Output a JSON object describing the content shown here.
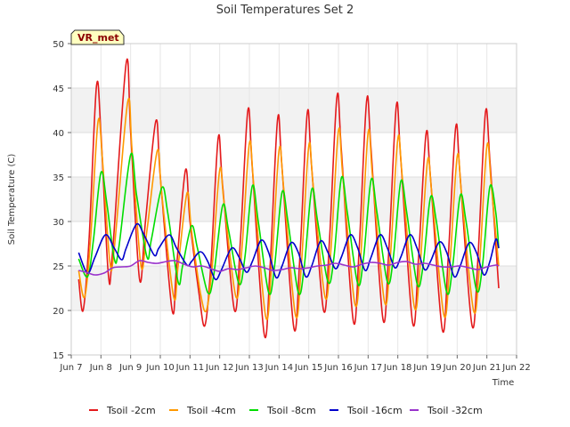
{
  "chart_data": {
    "type": "line",
    "title": "Soil Temperatures Set 2",
    "xlabel": "Time",
    "ylabel": "Soil Temperature (C)",
    "site_tag": "VR_met",
    "xlim": [
      7,
      22
    ],
    "ylim": [
      15,
      50
    ],
    "x_ticks": [
      7,
      8,
      9,
      10,
      11,
      12,
      13,
      14,
      15,
      16,
      17,
      18,
      19,
      20,
      21,
      22
    ],
    "x_tick_labels": [
      "Jun 7",
      "Jun 8",
      "Jun 9",
      "Jun 10",
      "Jun 11",
      "Jun 12",
      "Jun 13",
      "Jun 14",
      "Jun 15",
      "Jun 16",
      "Jun 17",
      "Jun 18",
      "Jun 19",
      "Jun 20",
      "Jun 21",
      "Jun 22"
    ],
    "y_ticks": [
      15,
      20,
      25,
      30,
      35,
      40,
      45,
      50
    ],
    "y_tick_labels": [
      "15",
      "20",
      "25",
      "30",
      "35",
      "40",
      "45",
      "50"
    ],
    "grid": true,
    "legend_position": "bottom",
    "series": [
      {
        "name": "Tsoil -2cm",
        "color": "#e41a1c",
        "points": [
          [
            7.25,
            23.5
          ],
          [
            7.4,
            20.0
          ],
          [
            7.6,
            28
          ],
          [
            7.85,
            45.2
          ],
          [
            8.0,
            40
          ],
          [
            8.25,
            24.0
          ],
          [
            8.4,
            27
          ],
          [
            8.85,
            47.8
          ],
          [
            9.0,
            40
          ],
          [
            9.3,
            23.5
          ],
          [
            9.5,
            30
          ],
          [
            9.85,
            41.3
          ],
          [
            10.0,
            35
          ],
          [
            10.4,
            20.0
          ],
          [
            10.55,
            25
          ],
          [
            10.85,
            35.8
          ],
          [
            11.0,
            30
          ],
          [
            11.3,
            22
          ],
          [
            11.5,
            18.3
          ],
          [
            11.7,
            25
          ],
          [
            11.95,
            39.4
          ],
          [
            12.1,
            34
          ],
          [
            12.5,
            20.0
          ],
          [
            12.7,
            28
          ],
          [
            12.95,
            42.5
          ],
          [
            13.1,
            36
          ],
          [
            13.5,
            17.3
          ],
          [
            13.7,
            25
          ],
          [
            13.95,
            41.5
          ],
          [
            14.1,
            36
          ],
          [
            14.5,
            18.0
          ],
          [
            14.7,
            26
          ],
          [
            14.95,
            42.2
          ],
          [
            15.1,
            36
          ],
          [
            15.5,
            20.0
          ],
          [
            15.7,
            28
          ],
          [
            15.95,
            44.0
          ],
          [
            16.1,
            38
          ],
          [
            16.5,
            18.8
          ],
          [
            16.7,
            27
          ],
          [
            16.95,
            43.6
          ],
          [
            17.1,
            38
          ],
          [
            17.5,
            19.0
          ],
          [
            17.7,
            27
          ],
          [
            17.95,
            43.0
          ],
          [
            18.1,
            37
          ],
          [
            18.5,
            18.6
          ],
          [
            18.7,
            26
          ],
          [
            18.95,
            39.8
          ],
          [
            19.1,
            35
          ],
          [
            19.5,
            17.8
          ],
          [
            19.7,
            26
          ],
          [
            19.95,
            40.6
          ],
          [
            20.1,
            35
          ],
          [
            20.5,
            18.3
          ],
          [
            20.7,
            26
          ],
          [
            20.95,
            42.2
          ],
          [
            21.1,
            37
          ],
          [
            21.4,
            22.5
          ]
        ]
      },
      {
        "name": "Tsoil -4cm",
        "color": "#ff9900",
        "points": [
          [
            7.25,
            24.5
          ],
          [
            7.45,
            21.5
          ],
          [
            7.65,
            28
          ],
          [
            7.9,
            41.2
          ],
          [
            8.05,
            37
          ],
          [
            8.3,
            25.5
          ],
          [
            8.45,
            27
          ],
          [
            8.9,
            43.4
          ],
          [
            9.05,
            38
          ],
          [
            9.35,
            25.0
          ],
          [
            9.55,
            29
          ],
          [
            9.9,
            38.0
          ],
          [
            10.05,
            33
          ],
          [
            10.45,
            21.5
          ],
          [
            10.6,
            25
          ],
          [
            10.9,
            33.2
          ],
          [
            11.05,
            29
          ],
          [
            11.35,
            22
          ],
          [
            11.55,
            20.0
          ],
          [
            11.75,
            25
          ],
          [
            12.0,
            35.8
          ],
          [
            12.15,
            32
          ],
          [
            12.55,
            21.5
          ],
          [
            12.75,
            27
          ],
          [
            13.0,
            38.8
          ],
          [
            13.15,
            34
          ],
          [
            13.55,
            19.3
          ],
          [
            13.75,
            25
          ],
          [
            14.0,
            38.0
          ],
          [
            14.15,
            34
          ],
          [
            14.55,
            19.5
          ],
          [
            14.75,
            25
          ],
          [
            15.0,
            38.5
          ],
          [
            15.15,
            34
          ],
          [
            15.55,
            21.5
          ],
          [
            15.75,
            27
          ],
          [
            16.0,
            40.2
          ],
          [
            16.15,
            35
          ],
          [
            16.55,
            20.8
          ],
          [
            16.75,
            26
          ],
          [
            17.0,
            40.0
          ],
          [
            17.15,
            35
          ],
          [
            17.55,
            21.0
          ],
          [
            17.75,
            26
          ],
          [
            18.0,
            39.3
          ],
          [
            18.15,
            35
          ],
          [
            18.55,
            20.5
          ],
          [
            18.75,
            25
          ],
          [
            19.0,
            36.8
          ],
          [
            19.15,
            33
          ],
          [
            19.55,
            19.5
          ],
          [
            19.75,
            25
          ],
          [
            20.0,
            37.3
          ],
          [
            20.15,
            33
          ],
          [
            20.55,
            20.0
          ],
          [
            20.75,
            25
          ],
          [
            21.0,
            38.5
          ],
          [
            21.15,
            34
          ],
          [
            21.4,
            25.0
          ]
        ]
      },
      {
        "name": "Tsoil -8cm",
        "color": "#00dd00",
        "points": [
          [
            7.25,
            25.8
          ],
          [
            7.55,
            23.8
          ],
          [
            7.75,
            28
          ],
          [
            8.0,
            35.5
          ],
          [
            8.2,
            32
          ],
          [
            8.45,
            25.8
          ],
          [
            8.6,
            27
          ],
          [
            9.0,
            37.5
          ],
          [
            9.2,
            33
          ],
          [
            9.55,
            26.0
          ],
          [
            9.7,
            28
          ],
          [
            10.05,
            33.8
          ],
          [
            10.25,
            31
          ],
          [
            10.6,
            23.2
          ],
          [
            10.75,
            25
          ],
          [
            11.05,
            29.5
          ],
          [
            11.25,
            27
          ],
          [
            11.6,
            22.0
          ],
          [
            11.8,
            24
          ],
          [
            12.1,
            31.8
          ],
          [
            12.3,
            29
          ],
          [
            12.65,
            23.0
          ],
          [
            12.85,
            26
          ],
          [
            13.1,
            34.0
          ],
          [
            13.3,
            30
          ],
          [
            13.65,
            22.0
          ],
          [
            13.85,
            25
          ],
          [
            14.1,
            33.3
          ],
          [
            14.3,
            30
          ],
          [
            14.65,
            22.0
          ],
          [
            14.85,
            25
          ],
          [
            15.1,
            33.6
          ],
          [
            15.3,
            30
          ],
          [
            15.65,
            23.2
          ],
          [
            15.85,
            26
          ],
          [
            16.1,
            34.9
          ],
          [
            16.3,
            31
          ],
          [
            16.65,
            23.0
          ],
          [
            16.85,
            26
          ],
          [
            17.1,
            34.7
          ],
          [
            17.3,
            31
          ],
          [
            17.65,
            23.2
          ],
          [
            17.85,
            26
          ],
          [
            18.1,
            34.5
          ],
          [
            18.3,
            31
          ],
          [
            18.65,
            23.0
          ],
          [
            18.85,
            25
          ],
          [
            19.1,
            32.7
          ],
          [
            19.3,
            30
          ],
          [
            19.65,
            22.0
          ],
          [
            19.85,
            25
          ],
          [
            20.1,
            32.9
          ],
          [
            20.3,
            30
          ],
          [
            20.65,
            22.3
          ],
          [
            20.85,
            25
          ],
          [
            21.1,
            33.9
          ],
          [
            21.3,
            31
          ],
          [
            21.4,
            27.0
          ]
        ]
      },
      {
        "name": "Tsoil -16cm",
        "color": "#0000cc",
        "points": [
          [
            7.25,
            26.5
          ],
          [
            7.55,
            24.2
          ],
          [
            7.8,
            26
          ],
          [
            8.15,
            28.5
          ],
          [
            8.45,
            27
          ],
          [
            8.7,
            25.7
          ],
          [
            8.85,
            27
          ],
          [
            9.2,
            29.7
          ],
          [
            9.45,
            28.5
          ],
          [
            9.8,
            26.2
          ],
          [
            9.95,
            27
          ],
          [
            10.3,
            28.5
          ],
          [
            10.55,
            27
          ],
          [
            10.9,
            25.1
          ],
          [
            11.05,
            25.5
          ],
          [
            11.35,
            26.6
          ],
          [
            11.6,
            25.5
          ],
          [
            11.85,
            23.5
          ],
          [
            12.05,
            24.5
          ],
          [
            12.4,
            27.0
          ],
          [
            12.65,
            26
          ],
          [
            12.9,
            24.3
          ],
          [
            13.1,
            25.5
          ],
          [
            13.4,
            27.9
          ],
          [
            13.65,
            26.5
          ],
          [
            13.9,
            23.7
          ],
          [
            14.1,
            25
          ],
          [
            14.4,
            27.6
          ],
          [
            14.65,
            26.5
          ],
          [
            14.9,
            23.8
          ],
          [
            15.1,
            25
          ],
          [
            15.4,
            27.8
          ],
          [
            15.65,
            26.5
          ],
          [
            15.9,
            24.7
          ],
          [
            16.1,
            26
          ],
          [
            16.4,
            28.5
          ],
          [
            16.65,
            27
          ],
          [
            16.9,
            24.5
          ],
          [
            17.1,
            26
          ],
          [
            17.4,
            28.5
          ],
          [
            17.65,
            27
          ],
          [
            17.9,
            24.8
          ],
          [
            18.1,
            26
          ],
          [
            18.4,
            28.5
          ],
          [
            18.65,
            27
          ],
          [
            18.9,
            24.6
          ],
          [
            19.1,
            25.5
          ],
          [
            19.4,
            27.7
          ],
          [
            19.65,
            26.5
          ],
          [
            19.9,
            23.8
          ],
          [
            20.1,
            25
          ],
          [
            20.4,
            27.6
          ],
          [
            20.65,
            26.5
          ],
          [
            20.9,
            24.0
          ],
          [
            21.1,
            25.5
          ],
          [
            21.3,
            28.0
          ],
          [
            21.4,
            27.0
          ]
        ]
      },
      {
        "name": "Tsoil -32cm",
        "color": "#9933cc",
        "points": [
          [
            7.25,
            24.5
          ],
          [
            7.5,
            24.3
          ],
          [
            7.8,
            24.0
          ],
          [
            8.1,
            24.2
          ],
          [
            8.4,
            24.8
          ],
          [
            8.7,
            24.9
          ],
          [
            9.0,
            25.0
          ],
          [
            9.3,
            25.6
          ],
          [
            9.6,
            25.4
          ],
          [
            9.9,
            25.3
          ],
          [
            10.2,
            25.5
          ],
          [
            10.5,
            25.6
          ],
          [
            10.8,
            25.2
          ],
          [
            11.1,
            24.9
          ],
          [
            11.4,
            25.0
          ],
          [
            11.7,
            24.7
          ],
          [
            12.0,
            24.4
          ],
          [
            12.3,
            24.7
          ],
          [
            12.6,
            24.6
          ],
          [
            12.9,
            24.8
          ],
          [
            13.2,
            25.0
          ],
          [
            13.5,
            24.8
          ],
          [
            13.8,
            24.5
          ],
          [
            14.1,
            24.6
          ],
          [
            14.4,
            24.8
          ],
          [
            14.7,
            24.7
          ],
          [
            15.0,
            24.8
          ],
          [
            15.3,
            25.0
          ],
          [
            15.6,
            25.1
          ],
          [
            15.9,
            25.3
          ],
          [
            16.2,
            25.1
          ],
          [
            16.5,
            24.9
          ],
          [
            16.8,
            25.2
          ],
          [
            17.1,
            25.4
          ],
          [
            17.4,
            25.3
          ],
          [
            17.7,
            25.1
          ],
          [
            18.0,
            25.4
          ],
          [
            18.3,
            25.5
          ],
          [
            18.6,
            25.2
          ],
          [
            18.9,
            25.3
          ],
          [
            19.2,
            25.1
          ],
          [
            19.5,
            24.9
          ],
          [
            19.8,
            24.9
          ],
          [
            20.1,
            25.0
          ],
          [
            20.4,
            24.8
          ],
          [
            20.7,
            24.6
          ],
          [
            21.0,
            24.9
          ],
          [
            21.3,
            25.1
          ],
          [
            21.4,
            25.0
          ]
        ]
      }
    ]
  }
}
